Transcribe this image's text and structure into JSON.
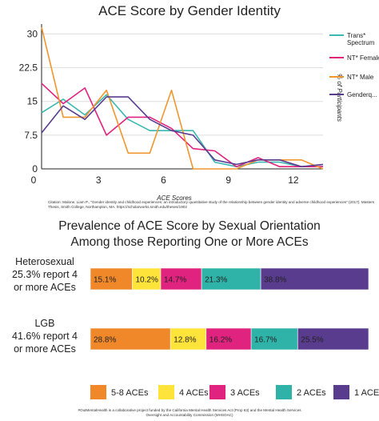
{
  "top_chart_title": "ACE Score by Gender Identity",
  "citation": "Citation: Malone, Liam P., \"Gender identity and childhood experiences: an introductory quantitative study of the relationship between gender identity and adverse childhood experiences\" (2017). Masters Thesis, Smith College, Northampton, MA. https://scholarworks.smith.edu/theses/1902",
  "bottom_chart_title_line1": "Prevalence of ACE Score by Sexual Orientation",
  "bottom_chart_title_line2": "Among those Reporting One or More ACEs",
  "row_labels": [
    {
      "line1": "Heterosexual",
      "line2": "25.3% report 4",
      "line3": "or more ACEs"
    },
    {
      "line1": "LGB",
      "line2": "41.6% report 4",
      "line3": "or more ACEs"
    }
  ],
  "footnote_line1": "#OutMentalHealth is a collaborative project funded by the California Mental Health Services Act (Prop 63) and the Mental Health Services",
  "footnote_line2": "Oversight and Accountability Commission (MHSOAC)",
  "chart_data": [
    {
      "type": "line",
      "title": "ACE Score by Gender Identity",
      "xlabel": "ACE Scores",
      "ylabel": "% of Participants",
      "x": [
        0,
        1,
        2,
        3,
        4,
        5,
        6,
        7,
        8,
        9,
        10,
        11,
        12,
        13
      ],
      "xticks": [
        0,
        3,
        6,
        9,
        12
      ],
      "xlim": [
        0,
        13
      ],
      "yticks": [
        "0",
        "7.5",
        "15",
        "22.5",
        "30"
      ],
      "ylim": [
        0,
        31.5
      ],
      "grid": "horizontal",
      "legend": "right",
      "series": [
        {
          "name": "Trans* Spectrum",
          "color": "#3bb8b0",
          "values": [
            12.5,
            15.5,
            12,
            16.5,
            11,
            8.5,
            8.5,
            8.5,
            1.5,
            0.5,
            1.5,
            1.5,
            0.5,
            0.5
          ]
        },
        {
          "name": "NT* Female",
          "color": "#e0237f",
          "values": [
            19,
            14.5,
            18,
            7.5,
            11.5,
            11.5,
            9,
            4.5,
            4,
            0.5,
            2.5,
            0.5,
            0.5,
            0.5
          ]
        },
        {
          "name": "NT* Male",
          "color": "#f0962e",
          "values": [
            31.5,
            11.5,
            11.5,
            17.5,
            3.5,
            3.5,
            17.5,
            0,
            0,
            0,
            2,
            2,
            2,
            0
          ]
        },
        {
          "name": "Genderq...",
          "color": "#5a3c8e",
          "values": [
            8,
            14,
            11,
            16,
            16,
            11,
            8.5,
            7.5,
            2,
            1,
            2,
            2,
            0.5,
            1
          ]
        }
      ]
    },
    {
      "type": "bar",
      "orientation": "horizontal",
      "stacked": true,
      "title": "Prevalence of ACE Score by Sexual Orientation Among those Reporting One or More ACEs",
      "categories": [
        "Heterosexual",
        "LGB"
      ],
      "legend": "bottom",
      "series": [
        {
          "name": "5-8 ACEs",
          "color": "#f0882a",
          "values": [
            15.1,
            28.8
          ],
          "labels": [
            "15.1%",
            "28.8%"
          ]
        },
        {
          "name": "4 ACEs",
          "color": "#fde33a",
          "values": [
            10.2,
            12.8
          ],
          "labels": [
            "10.2%",
            "12.8%"
          ]
        },
        {
          "name": "3 ACEs",
          "color": "#e0237f",
          "values": [
            14.7,
            16.2
          ],
          "labels": [
            "14.7%",
            "16.2%"
          ]
        },
        {
          "name": "2 ACEs",
          "color": "#2fb3a8",
          "values": [
            21.3,
            16.7
          ],
          "labels": [
            "21.3%",
            "16.7%"
          ]
        },
        {
          "name": "1 ACE",
          "color": "#5a3c8e",
          "values": [
            38.8,
            25.5
          ],
          "labels": [
            "38.8%",
            "25.5%"
          ]
        }
      ]
    }
  ]
}
